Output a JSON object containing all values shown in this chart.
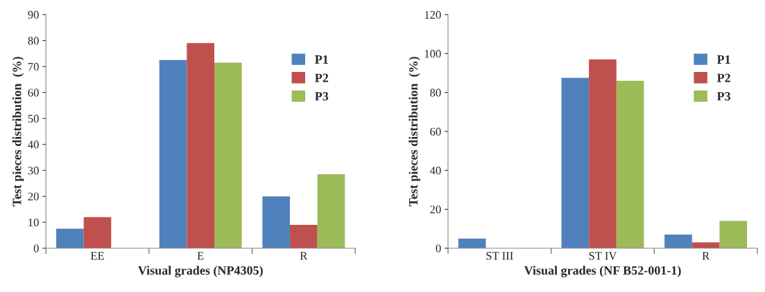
{
  "chart_data": [
    {
      "type": "bar",
      "xlabel": "Visual grades (NP4305)",
      "ylabel": "Test pieces distribution  (%)",
      "categories": [
        "EE",
        "E",
        "R"
      ],
      "ylim": [
        0,
        90
      ],
      "yticks": [
        0,
        10,
        20,
        30,
        40,
        50,
        60,
        70,
        80,
        90
      ],
      "grid": false,
      "legend": "top right",
      "series": [
        {
          "name": "P1",
          "color": "#4f81bd",
          "values": [
            7.5,
            72.5,
            20
          ]
        },
        {
          "name": "P2",
          "color": "#c0504d",
          "values": [
            12,
            79,
            9
          ]
        },
        {
          "name": "P3",
          "color": "#9bbb59",
          "values": [
            null,
            71.5,
            28.5
          ]
        }
      ]
    },
    {
      "type": "bar",
      "xlabel": "Visual grades (NF B52-001-1)",
      "ylabel": "Test pieces distribution  (%)",
      "categories": [
        "ST III",
        "ST IV",
        "R"
      ],
      "ylim": [
        0,
        120
      ],
      "yticks": [
        0,
        20,
        40,
        60,
        80,
        100,
        120
      ],
      "grid": false,
      "legend": "top right",
      "series": [
        {
          "name": "P1",
          "color": "#4f81bd",
          "values": [
            5,
            87.5,
            7
          ]
        },
        {
          "name": "P2",
          "color": "#c0504d",
          "values": [
            null,
            97,
            3
          ]
        },
        {
          "name": "P3",
          "color": "#9bbb59",
          "values": [
            null,
            86,
            14
          ]
        }
      ]
    }
  ]
}
